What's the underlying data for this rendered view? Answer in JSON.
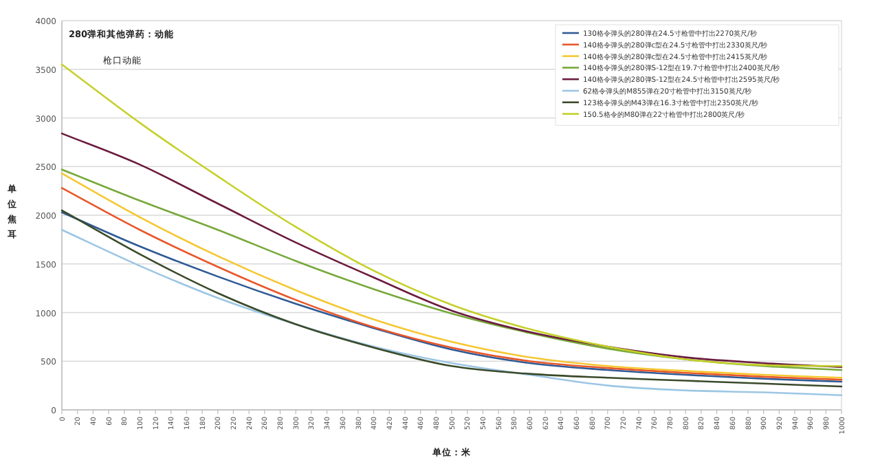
{
  "chart_data": {
    "type": "line",
    "title": "280弹和其他弹药：动能",
    "subtitle": "枪口动能",
    "xlabel": "单位：米",
    "ylabel": "单位焦耳",
    "x": [
      0,
      100,
      200,
      300,
      400,
      500,
      600,
      700,
      800,
      900,
      1000
    ],
    "xlim": [
      0,
      1000
    ],
    "xticks": [
      0,
      20,
      40,
      60,
      80,
      100,
      120,
      140,
      160,
      180,
      200,
      220,
      240,
      260,
      280,
      300,
      320,
      340,
      360,
      380,
      400,
      420,
      440,
      460,
      480,
      500,
      520,
      540,
      560,
      580,
      600,
      620,
      640,
      660,
      680,
      700,
      720,
      740,
      760,
      780,
      800,
      820,
      840,
      860,
      880,
      900,
      920,
      940,
      960,
      980,
      1000
    ],
    "ylim": [
      0,
      4000
    ],
    "yticks": [
      0,
      500,
      1000,
      1500,
      2000,
      2500,
      3000,
      3500,
      4000
    ],
    "grid": "y",
    "legend": "top right",
    "marker": "none",
    "line_style": "solid",
    "series": [
      {
        "name": "130格令弹头的280弹在24.5寸枪管中打出2270英尺/秒",
        "color": "#2e5a95",
        "values": [
          2030,
          1680,
          1370,
          1090,
          840,
          620,
          480,
          410,
          360,
          320,
          290
        ]
      },
      {
        "name": "140格令弹头的280弹c型在24.5寸枪管中打出2330英尺/秒",
        "color": "#e8572a",
        "values": [
          2280,
          1850,
          1470,
          1130,
          850,
          640,
          500,
          430,
          380,
          340,
          310
        ]
      },
      {
        "name": "140格令弹头的280弹c型在24.5寸枪管中打出2415英尺/秒",
        "color": "#f5c732",
        "values": [
          2430,
          1980,
          1580,
          1230,
          930,
          700,
          540,
          450,
          400,
          360,
          330
        ]
      },
      {
        "name": "140格令弹头的280弹S-12型在19.7寸枪管中打出2400英尺/秒",
        "color": "#77a83a",
        "values": [
          2470,
          2150,
          1850,
          1530,
          1240,
          990,
          790,
          630,
          520,
          450,
          410
        ]
      },
      {
        "name": "140格令弹头的280弹S-12型在24.5寸枪管中打出2595英尺/秒",
        "color": "#6b1b3f",
        "values": [
          2840,
          2520,
          2120,
          1720,
          1360,
          1020,
          800,
          650,
          540,
          480,
          440
        ]
      },
      {
        "name": "62格令弹头的M855弹在20寸枪管中打出3150英尺/秒",
        "color": "#9cc6e4",
        "values": [
          1850,
          1480,
          1150,
          880,
          650,
          480,
          360,
          250,
          200,
          180,
          150
        ]
      },
      {
        "name": "123格令弹头的M43弹在16.3寸枪管中打出2350英尺/秒",
        "color": "#3a4a2a",
        "values": [
          2050,
          1600,
          1200,
          880,
          640,
          450,
          370,
          330,
          300,
          270,
          240
        ]
      },
      {
        "name": "150.5格令的M80弹在22寸枪管中打出2800英尺/秒",
        "color": "#c5d02a",
        "values": [
          3550,
          2950,
          2400,
          1880,
          1430,
          1080,
          830,
          650,
          520,
          460,
          450
        ]
      }
    ]
  }
}
